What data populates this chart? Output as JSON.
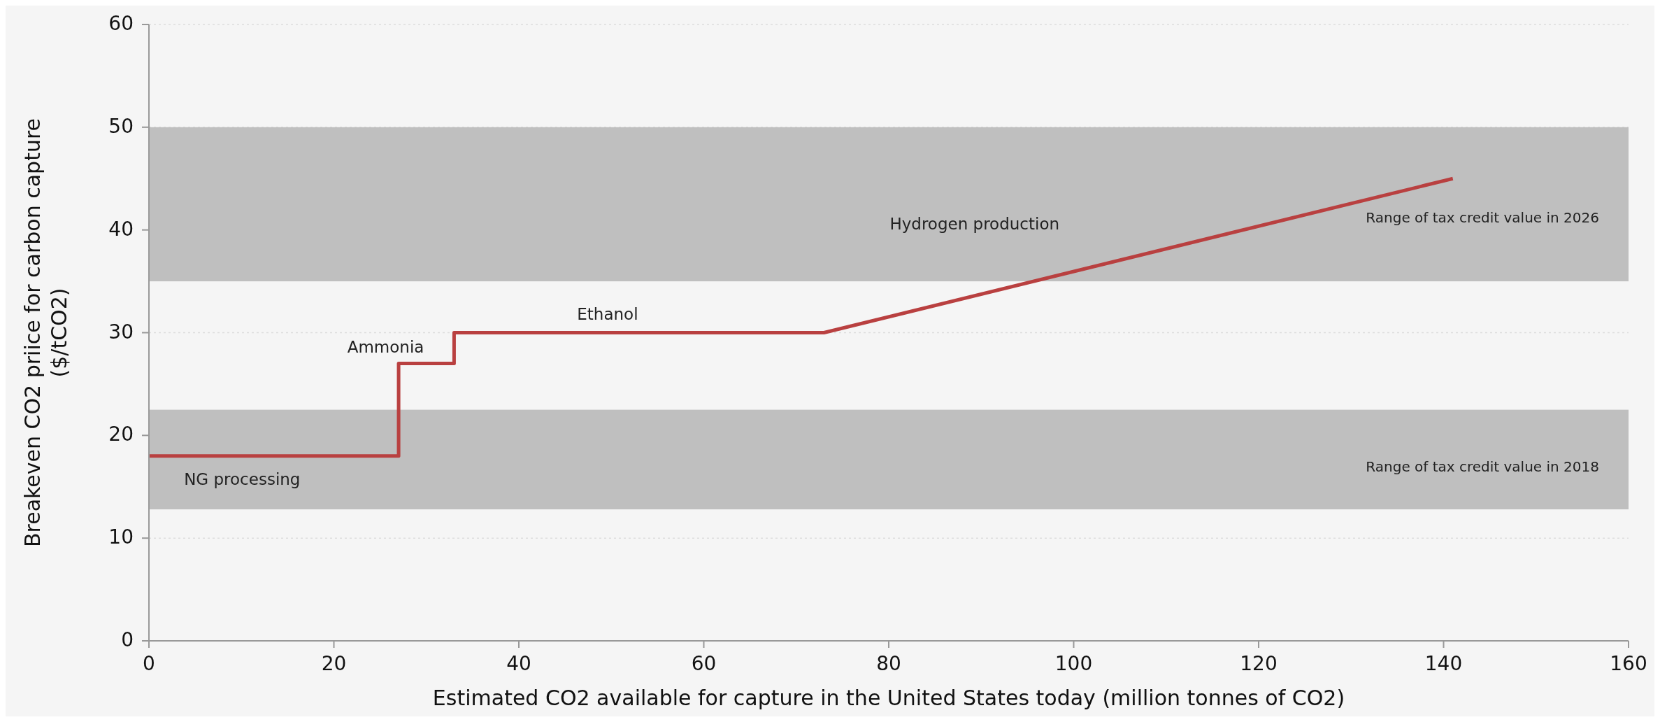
{
  "chart_data": {
    "type": "line",
    "xlabel": "Estimated CO2 available for capture in the United States today (million tonnes of CO2)",
    "ylabel": "Breakeven CO2 priice for carbon capture\n($/tCO2)",
    "xlim": [
      0,
      160
    ],
    "xticks": [
      0,
      20,
      40,
      60,
      80,
      100,
      120,
      140,
      160
    ],
    "ylim": [
      0,
      60
    ],
    "yticks": [
      0,
      10,
      20,
      30,
      40,
      50,
      60
    ],
    "grid": "y",
    "marker": "none",
    "line_style": "solid",
    "series": [
      {
        "color": "#b94040",
        "x": [
          0,
          27,
          27,
          33,
          33,
          73,
          141
        ],
        "values": [
          18,
          18,
          27,
          27,
          30,
          30,
          45
        ]
      }
    ],
    "bands": [
      {
        "axis": "y",
        "from": 12.8,
        "to": 22.5,
        "label": "Range of tax credit value in 2018",
        "color": "#bfbfbf"
      },
      {
        "axis": "y",
        "from": 35,
        "to": 50,
        "label": "Range of tax credit value in 2026",
        "color": "#bfbfbf"
      }
    ],
    "annotations": [
      "NG processing",
      "Ammonia",
      "Ethanol",
      "Hydrogen production"
    ]
  }
}
